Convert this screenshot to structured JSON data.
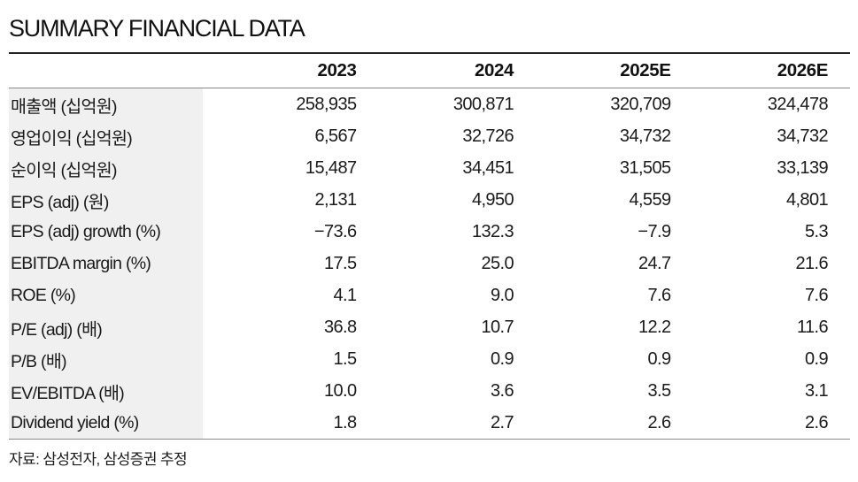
{
  "title": "SUMMARY FINANCIAL DATA",
  "columns": [
    "2023",
    "2024",
    "2025E",
    "2026E"
  ],
  "rows": [
    {
      "label": "매출액 (십억원)",
      "values": [
        "258,935",
        "300,871",
        "320,709",
        "324,478"
      ]
    },
    {
      "label": "영업이익 (십억원)",
      "values": [
        "6,567",
        "32,726",
        "34,732",
        "34,732"
      ]
    },
    {
      "label": "순이익 (십억원)",
      "values": [
        "15,487",
        "34,451",
        "31,505",
        "33,139"
      ]
    },
    {
      "label": "EPS (adj) (원)",
      "values": [
        "2,131",
        "4,950",
        "4,559",
        "4,801"
      ]
    },
    {
      "label": "EPS (adj) growth (%)",
      "values": [
        "−73.6",
        "132.3",
        "−7.9",
        "5.3"
      ]
    },
    {
      "label": "EBITDA margin (%)",
      "values": [
        "17.5",
        "25.0",
        "24.7",
        "21.6"
      ]
    },
    {
      "label": "ROE (%)",
      "values": [
        "4.1",
        "9.0",
        "7.6",
        "7.6"
      ]
    },
    {
      "label": "P/E (adj) (배)",
      "values": [
        "36.8",
        "10.7",
        "12.2",
        "11.6"
      ]
    },
    {
      "label": "P/B (배)",
      "values": [
        "1.5",
        "0.9",
        "0.9",
        "0.9"
      ]
    },
    {
      "label": "EV/EBITDA (배)",
      "values": [
        "10.0",
        "3.6",
        "3.5",
        "3.1"
      ]
    },
    {
      "label": "Dividend yield (%)",
      "values": [
        "1.8",
        "2.7",
        "2.6",
        "2.6"
      ]
    }
  ],
  "source": "자료: 삼성전자, 삼성증권 추정"
}
